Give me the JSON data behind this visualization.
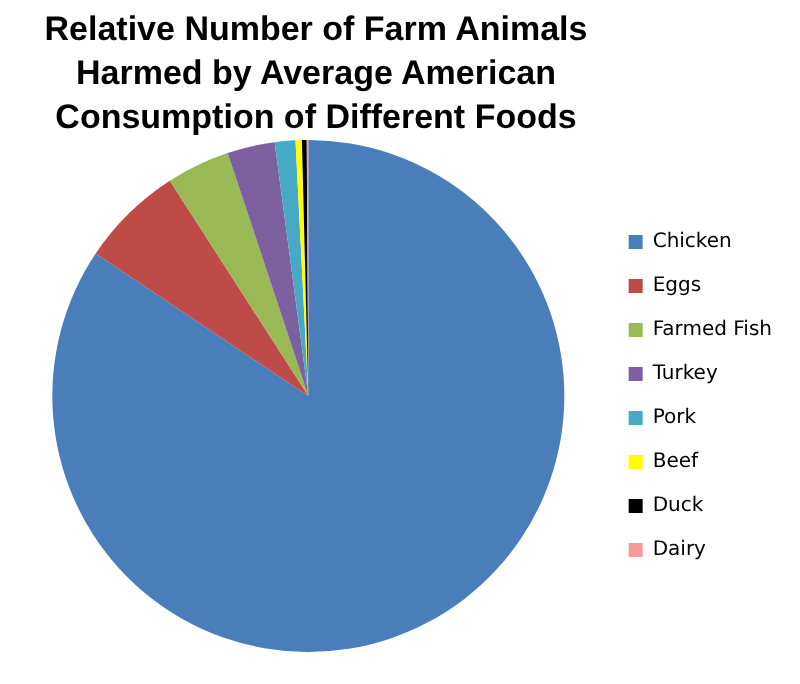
{
  "chart_data": {
    "type": "pie",
    "title": "Relative Number of Farm Animals Harmed by Average American Consumption of Different Foods",
    "categories": [
      "Chicken",
      "Eggs",
      "Farmed Fish",
      "Turkey",
      "Pork",
      "Beef",
      "Duck",
      "Dairy"
    ],
    "values": [
      84.4,
      6.5,
      4,
      3,
      1.3,
      0.4,
      0.3,
      0.1
    ],
    "colors": [
      "#4a7ebb",
      "#be4b48",
      "#98b954",
      "#7d60a0",
      "#46aac5",
      "#ffff00",
      "#000000",
      "#f79995"
    ],
    "legend": "right"
  }
}
